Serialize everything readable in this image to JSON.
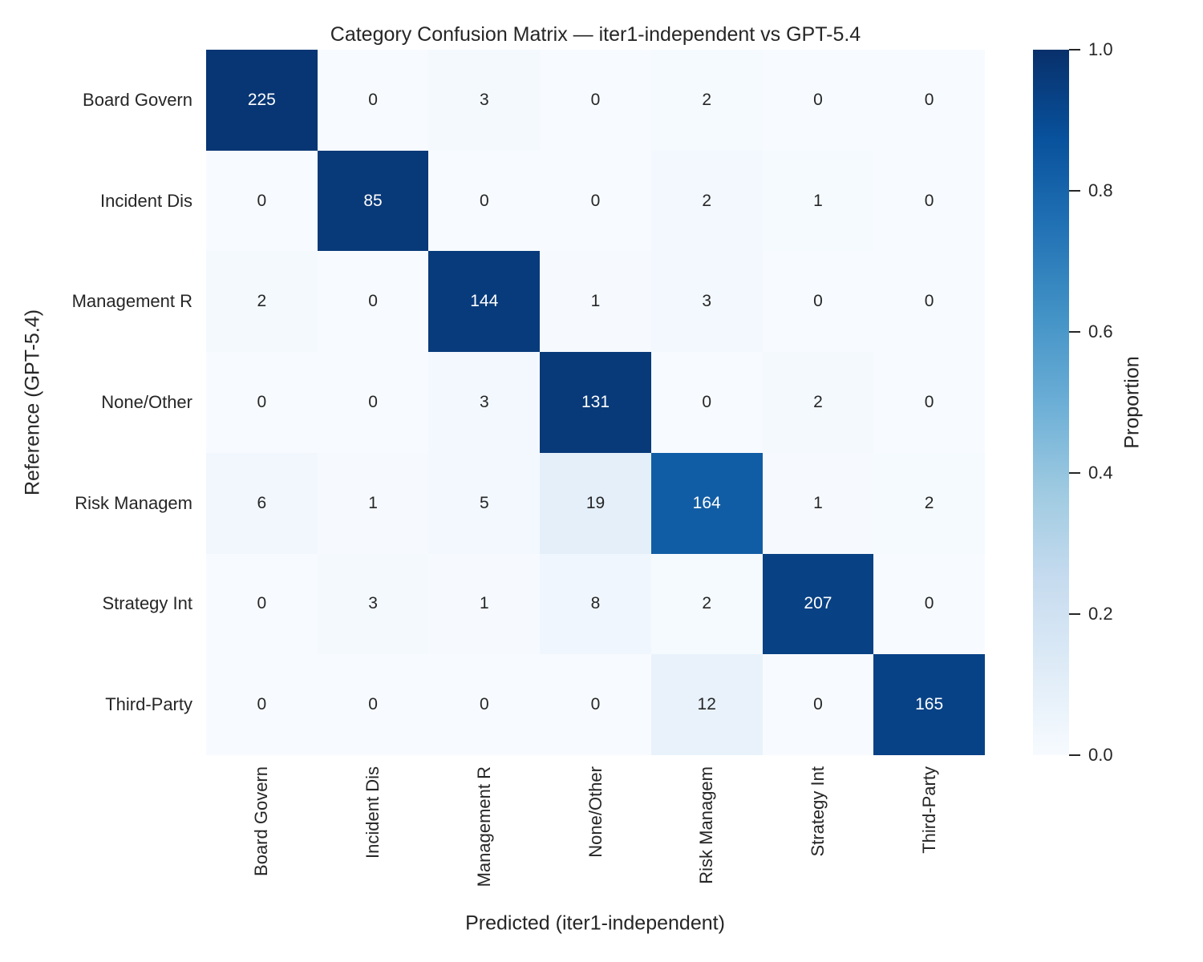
{
  "title": "Category Confusion Matrix — iter1-independent vs GPT-5.4",
  "chart_data": {
    "type": "heatmap",
    "title": "Category Confusion Matrix — iter1-independent vs GPT-5.4",
    "xlabel": "Predicted (iter1-independent)",
    "ylabel": "Reference (GPT-5.4)",
    "x_categories": [
      "Board Govern",
      "Incident Dis",
      "Management R",
      "None/Other",
      "Risk Managem",
      "Strategy Int",
      "Third-Party"
    ],
    "y_categories": [
      "Board Govern",
      "Incident Dis",
      "Management R",
      "None/Other",
      "Risk Managem",
      "Strategy Int",
      "Third-Party"
    ],
    "matrix": [
      [
        225,
        0,
        3,
        0,
        2,
        0,
        0
      ],
      [
        0,
        85,
        0,
        0,
        2,
        1,
        0
      ],
      [
        2,
        0,
        144,
        1,
        3,
        0,
        0
      ],
      [
        0,
        0,
        3,
        131,
        0,
        2,
        0
      ],
      [
        6,
        1,
        5,
        19,
        164,
        1,
        2
      ],
      [
        0,
        3,
        1,
        8,
        2,
        207,
        0
      ],
      [
        0,
        0,
        0,
        0,
        12,
        0,
        165
      ]
    ],
    "cell_color_value": "row-normalized proportion (value / row sum)",
    "colormap": "Blues",
    "grid": false,
    "colorbar": {
      "label": "Proportion",
      "min": 0.0,
      "max": 1.0,
      "ticks": [
        1.0,
        0.8,
        0.6,
        0.4,
        0.2,
        0.0
      ],
      "position": "right"
    }
  },
  "colors": {
    "background": "#ffffff",
    "text": "#262626",
    "annotation_on_dark": "#ffffff",
    "cmap_stops": [
      "#f7fbff",
      "#deebf7",
      "#c6dbef",
      "#9ecae1",
      "#6baed6",
      "#4292c6",
      "#2171b5",
      "#08519c",
      "#08306b"
    ]
  }
}
